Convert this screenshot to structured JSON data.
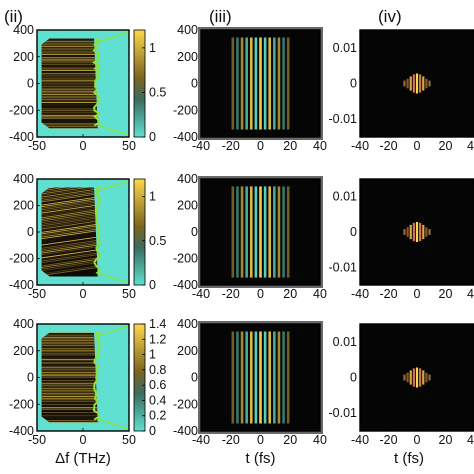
{
  "panel_labels": [
    "(ii)",
    "(iii)",
    "(iv)"
  ],
  "colors": {
    "map_low": "#5fe0d0",
    "map_mid": "#7a6420",
    "map_high": "#ffd84a",
    "map_dark": "#0d0a08",
    "edge_trace": "#8ee03a",
    "background": "#ffffff",
    "frame": "#000000"
  },
  "chart_data": [
    {
      "type": "heatmap",
      "panel": "(ii)",
      "row": 1,
      "xlabel": "",
      "ylabel": "",
      "xlim": [
        -50,
        50
      ],
      "ylim": [
        -400,
        400
      ],
      "x_ticks": [
        "-50",
        "0",
        "50"
      ],
      "y_ticks": [
        "400",
        "200",
        "0",
        "-200",
        "-400"
      ],
      "y_ticks_shown": [
        "400",
        "200",
        "0",
        "-200",
        "-400"
      ],
      "colorbar": {
        "range": [
          0,
          1.2
        ],
        "ticks": [
          "1",
          "0.5",
          "0"
        ]
      }
    },
    {
      "type": "heatmap",
      "panel": "(iii)",
      "row": 1,
      "xlabel": "",
      "ylabel": "",
      "xlim": [
        -40,
        40
      ],
      "ylim": [
        -400,
        400
      ],
      "x_ticks": [
        "-40",
        "-20",
        "0",
        "20",
        "40"
      ],
      "y_ticks": [
        "400",
        "200",
        "0",
        "-200",
        "-400"
      ]
    },
    {
      "type": "heatmap",
      "panel": "(iv)",
      "row": 1,
      "xlabel": "",
      "ylabel": "",
      "xlim": [
        -40,
        40
      ],
      "ylim": [
        -0.015,
        0.015
      ],
      "x_ticks": [
        "-40",
        "-20",
        "0",
        "20",
        "40"
      ],
      "y_ticks": [
        "0.01",
        "0",
        "-0.01"
      ]
    },
    {
      "type": "heatmap",
      "panel": "(ii)",
      "row": 2,
      "xlabel": "",
      "ylabel": "",
      "xlim": [
        -50,
        50
      ],
      "ylim": [
        -400,
        400
      ],
      "x_ticks": [
        "-50",
        "0",
        "50"
      ],
      "y_ticks": [
        "400",
        "200",
        "0",
        "-200",
        "-400"
      ],
      "colorbar": {
        "range": [
          0,
          1.2
        ],
        "ticks": [
          "1",
          "0.5",
          "0"
        ]
      }
    },
    {
      "type": "heatmap",
      "panel": "(iii)",
      "row": 2,
      "xlabel": "",
      "ylabel": "",
      "xlim": [
        -40,
        40
      ],
      "ylim": [
        -400,
        400
      ],
      "x_ticks": [
        "-40",
        "-20",
        "0",
        "20",
        "40"
      ],
      "y_ticks": [
        "400",
        "200",
        "0",
        "-200",
        "-400"
      ]
    },
    {
      "type": "heatmap",
      "panel": "(iv)",
      "row": 2,
      "xlabel": "",
      "ylabel": "",
      "xlim": [
        -40,
        40
      ],
      "ylim": [
        -0.015,
        0.015
      ],
      "x_ticks": [
        "-40",
        "-20",
        "0",
        "20",
        "40"
      ],
      "y_ticks": [
        "0.01",
        "0",
        "-0.01"
      ]
    },
    {
      "type": "heatmap",
      "panel": "(ii)",
      "row": 3,
      "xlabel": "Δf (THz)",
      "ylabel": "",
      "xlim": [
        -50,
        50
      ],
      "ylim": [
        -400,
        400
      ],
      "x_ticks": [
        "-50",
        "0",
        "50"
      ],
      "y_ticks": [
        "400",
        "200",
        "0",
        "-200",
        "-400"
      ],
      "colorbar": {
        "range": [
          0,
          1.4
        ],
        "ticks": [
          "1.4",
          "1.2",
          "1",
          "0.8",
          "0.6",
          "0.4",
          "0.2",
          "0"
        ]
      }
    },
    {
      "type": "heatmap",
      "panel": "(iii)",
      "row": 3,
      "xlabel": "t (fs)",
      "ylabel": "",
      "xlim": [
        -40,
        40
      ],
      "ylim": [
        -400,
        400
      ],
      "x_ticks": [
        "-40",
        "-20",
        "0",
        "20",
        "40"
      ],
      "y_ticks": [
        "400",
        "200",
        "0",
        "-200",
        "-400"
      ]
    },
    {
      "type": "heatmap",
      "panel": "(iv)",
      "row": 3,
      "xlabel": "t (fs)",
      "ylabel": "",
      "xlim": [
        -40,
        40
      ],
      "ylim": [
        -0.015,
        0.015
      ],
      "x_ticks": [
        "-40",
        "-20",
        "0",
        "20",
        "40"
      ],
      "y_ticks": [
        "0.01",
        "0",
        "-0.01"
      ]
    }
  ]
}
